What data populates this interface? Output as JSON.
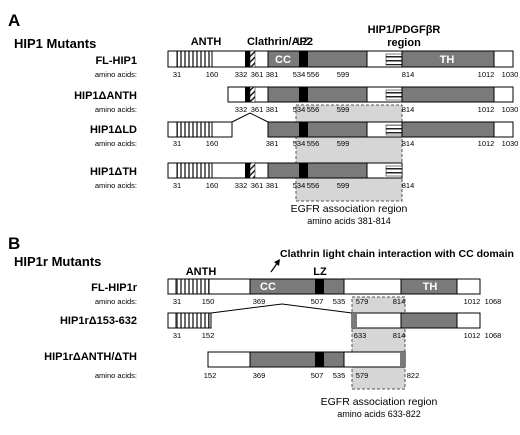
{
  "panel_a": {
    "letter": "A",
    "heading": "HIP1 Mutants",
    "domains": {
      "anth": "ANTH",
      "clathrin_ap2": "Clathrin/AP2",
      "lz": "LZ",
      "region_line1": "HIP1/PDGFβR",
      "region_line2": "region",
      "cc": "CC",
      "th": "TH"
    },
    "constructs": [
      {
        "name": "FL-HIP1",
        "aa_label": "amino acids:",
        "positions": [
          "31",
          "160",
          "332",
          "361",
          "381",
          "534",
          "556",
          "599",
          "814",
          "1012",
          "1030"
        ]
      },
      {
        "name": "HIP1ΔANTH",
        "aa_label": "amino acids:",
        "positions": [
          "332",
          "361",
          "381",
          "534",
          "556",
          "599",
          "814",
          "1012",
          "1030"
        ]
      },
      {
        "name": "HIP1ΔLD",
        "aa_label": "amino acids:",
        "positions": [
          "31",
          "160",
          "381",
          "534",
          "556",
          "599",
          "814",
          "1012",
          "1030"
        ]
      },
      {
        "name": "HIP1ΔTH",
        "aa_label": "amino acids:",
        "positions": [
          "31",
          "160",
          "332",
          "361",
          "381",
          "534",
          "556",
          "599",
          "814"
        ]
      }
    ],
    "egfr_title": "EGFR association region",
    "egfr_range": "amino acids 381-814"
  },
  "panel_b": {
    "letter": "B",
    "heading": "HIP1r Mutants",
    "callout": "Clathrin light chain interaction with CC domain",
    "domains": {
      "anth": "ANTH",
      "cc": "CC",
      "lz": "LZ",
      "th": "TH"
    },
    "constructs": [
      {
        "name": "FL-HIP1r",
        "aa_label": "amino acids:",
        "positions": [
          "31",
          "150",
          "369",
          "507",
          "535",
          "579",
          "814",
          "1012",
          "1068"
        ]
      },
      {
        "name": "HIP1rΔ153-632",
        "aa_label": "amino acids:",
        "positions": [
          "31",
          "152",
          "633",
          "814",
          "1012",
          "1068"
        ]
      },
      {
        "name": "HIP1rΔANTH/ΔTH",
        "aa_label": "amino acids:",
        "positions": [
          "152",
          "369",
          "507",
          "535",
          "579",
          "822"
        ]
      }
    ],
    "egfr_title": "EGFR association region",
    "egfr_range": "amino acids 633-822"
  },
  "colors": {
    "dark_domain": "#7a7a7a",
    "egfr_shade": "#d6d6d6",
    "lz_band": "#000000"
  }
}
